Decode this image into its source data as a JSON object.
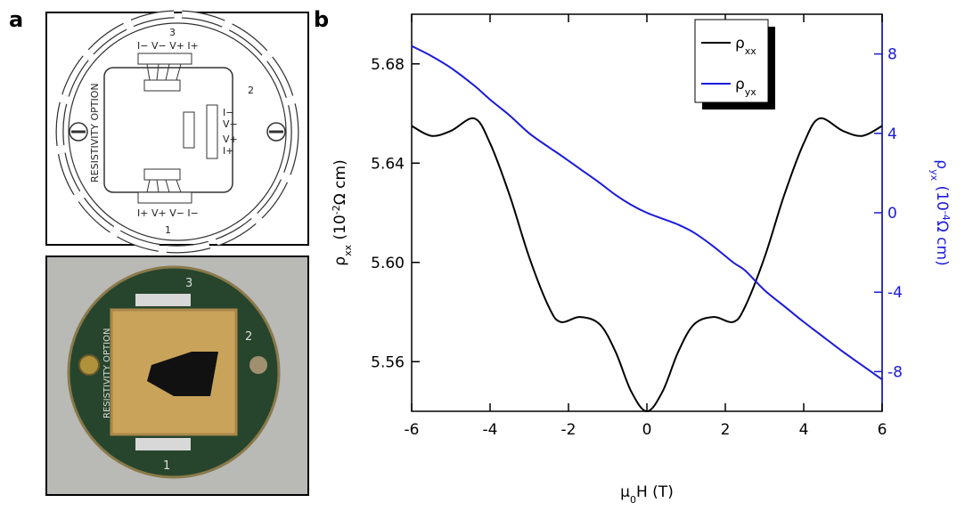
{
  "panel_labels": [
    "a",
    "b"
  ],
  "diagram": {
    "numbers": [
      "3",
      "2",
      "1"
    ],
    "option_label": "RESISTIVITY OPTION",
    "pins_top": "I− V− V+ I+",
    "pins_bottom": "I+ V+ V− I−",
    "pins_right": [
      "I−",
      "V−",
      "V+",
      "I+"
    ]
  },
  "photo": {
    "numbers": [
      "3",
      "2",
      "1"
    ],
    "option_label": "RESISTIVITY OPTION"
  },
  "chart_data": {
    "type": "line",
    "x_label": [
      "μ",
      "0",
      "H (T)"
    ],
    "y_label": [
      "ρ",
      "xx",
      " (10",
      "-2",
      "Ω cm)"
    ],
    "y2_label": [
      "ρ",
      "yx",
      " (10",
      "-4",
      "Ω cm)"
    ],
    "x": [
      -6,
      -5.5,
      -5,
      -4.4,
      -4,
      -3.5,
      -3,
      -2.5,
      -2.2,
      -1.7,
      -1.2,
      -0.8,
      -0.4,
      0,
      0.4,
      0.8,
      1.2,
      1.7,
      2.2,
      2.5,
      3,
      3.5,
      4,
      4.4,
      5,
      5.5,
      6
    ],
    "series": [
      {
        "name": "ρ",
        "name_sub": "xx",
        "color": "#000000",
        "values": [
          5.655,
          5.651,
          5.653,
          5.658,
          5.648,
          5.627,
          5.602,
          5.582,
          5.576,
          5.578,
          5.575,
          5.564,
          5.548,
          5.54,
          5.548,
          5.564,
          5.575,
          5.578,
          5.576,
          5.582,
          5.602,
          5.627,
          5.648,
          5.658,
          5.653,
          5.651,
          5.655
        ]
      },
      {
        "name": "ρ",
        "name_sub": "yx",
        "color": "#1a1adc",
        "axis": "y2",
        "values": [
          8.4,
          7.9,
          7.3,
          6.4,
          5.7,
          4.9,
          4.0,
          3.3,
          2.9,
          2.2,
          1.5,
          0.9,
          0.4,
          0,
          -0.3,
          -0.6,
          -1.0,
          -1.7,
          -2.5,
          -2.9,
          -3.9,
          -4.7,
          -5.5,
          -6.1,
          -7.0,
          -7.7,
          -8.4
        ]
      }
    ],
    "xlim": [
      -6,
      6
    ],
    "xticks": [
      -6,
      -4,
      -2,
      0,
      2,
      4,
      6
    ],
    "ylim": [
      5.54,
      5.7
    ],
    "yticks": [
      5.56,
      {
        "value": 5.6,
        "label": "5.60"
      },
      5.64,
      5.68
    ],
    "y2lim": [
      -10,
      10
    ],
    "y2ticks": [
      -8,
      -4,
      0,
      4,
      8
    ]
  }
}
